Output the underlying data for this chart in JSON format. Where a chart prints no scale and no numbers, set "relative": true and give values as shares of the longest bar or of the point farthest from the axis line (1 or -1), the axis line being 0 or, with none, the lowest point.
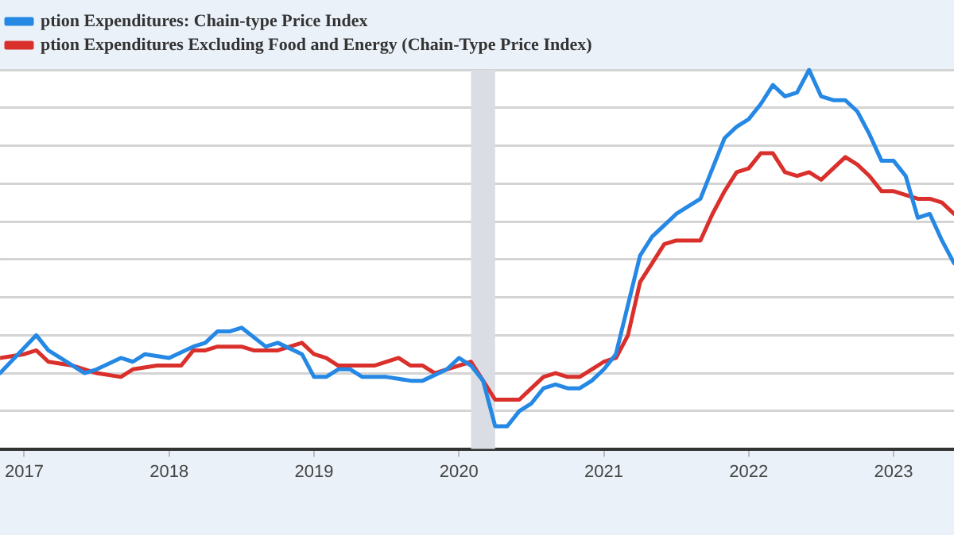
{
  "chart_data": {
    "type": "line",
    "relative": true,
    "grid": "y",
    "legend": "top left",
    "marker": "none",
    "line_style": "solid",
    "xlim": [
      "2016-11",
      "2023-06"
    ],
    "xticks": [
      {
        "value": "2017",
        "label": "2017"
      },
      {
        "value": "2018",
        "label": "2018"
      },
      {
        "value": "2019",
        "label": "2019"
      },
      {
        "value": "2020",
        "label": "2020"
      },
      {
        "value": "2021",
        "label": "2021"
      },
      {
        "value": "2022",
        "label": "2022"
      },
      {
        "value": "2023",
        "label": "2023"
      }
    ],
    "bands": [
      {
        "axis": "x",
        "from": "2020-02",
        "to": "2020-04",
        "color": "#dadee4"
      }
    ],
    "series": [
      {
        "name": "ption Expenditures: Chain-type Price Index",
        "color": "#2588e4",
        "x": [
          "2016-11",
          "2017-02",
          "2017-03",
          "2017-04",
          "2017-06",
          "2017-07",
          "2017-09",
          "2017-10",
          "2017-11",
          "2018-01",
          "2018-03",
          "2018-04",
          "2018-05",
          "2018-06",
          "2018-07",
          "2018-09",
          "2018-10",
          "2018-12",
          "2019-01",
          "2019-02",
          "2019-03",
          "2019-04",
          "2019-05",
          "2019-07",
          "2019-09",
          "2019-10",
          "2019-12",
          "2020-01",
          "2020-02",
          "2020-03",
          "2020-04",
          "2020-05",
          "2020-06",
          "2020-07",
          "2020-08",
          "2020-09",
          "2020-10",
          "2020-11",
          "2020-12",
          "2021-01",
          "2021-02",
          "2021-03",
          "2021-04",
          "2021-05",
          "2021-06",
          "2021-07",
          "2021-08",
          "2021-09",
          "2021-10",
          "2021-11",
          "2021-12",
          "2022-01",
          "2022-02",
          "2022-03",
          "2022-04",
          "2022-05",
          "2022-06",
          "2022-07",
          "2022-08",
          "2022-09",
          "2022-10",
          "2022-11",
          "2022-12",
          "2023-01",
          "2023-02",
          "2023-03",
          "2023-04",
          "2023-05",
          "2023-06"
        ],
        "values": [
          0.2,
          0.3,
          0.26,
          0.24,
          0.2,
          0.21,
          0.24,
          0.23,
          0.25,
          0.24,
          0.27,
          0.28,
          0.31,
          0.31,
          0.32,
          0.27,
          0.28,
          0.25,
          0.19,
          0.19,
          0.21,
          0.21,
          0.19,
          0.19,
          0.18,
          0.18,
          0.21,
          0.24,
          0.22,
          0.18,
          0.06,
          0.06,
          0.1,
          0.12,
          0.16,
          0.17,
          0.16,
          0.16,
          0.18,
          0.21,
          0.25,
          0.38,
          0.51,
          0.56,
          0.59,
          0.62,
          0.64,
          0.66,
          0.74,
          0.82,
          0.85,
          0.87,
          0.91,
          0.96,
          0.93,
          0.94,
          1,
          0.93,
          0.92,
          0.92,
          0.89,
          0.83,
          0.76,
          0.76,
          0.72,
          0.61,
          0.62,
          0.55,
          0.49
        ]
      },
      {
        "name": "ption Expenditures Excluding Food and Energy (Chain-Type Price Index)",
        "color": "#d9302c",
        "x": [
          "2016-11",
          "2017-01",
          "2017-02",
          "2017-03",
          "2017-05",
          "2017-06",
          "2017-07",
          "2017-09",
          "2017-10",
          "2017-12",
          "2018-02",
          "2018-03",
          "2018-04",
          "2018-05",
          "2018-06",
          "2018-07",
          "2018-08",
          "2018-10",
          "2018-11",
          "2018-12",
          "2019-01",
          "2019-02",
          "2019-03",
          "2019-05",
          "2019-06",
          "2019-08",
          "2019-09",
          "2019-10",
          "2019-11",
          "2019-12",
          "2020-02",
          "2020-03",
          "2020-04",
          "2020-05",
          "2020-06",
          "2020-07",
          "2020-08",
          "2020-09",
          "2020-10",
          "2020-11",
          "2020-12",
          "2021-01",
          "2021-02",
          "2021-03",
          "2021-04",
          "2021-05",
          "2021-06",
          "2021-07",
          "2021-08",
          "2021-09",
          "2021-10",
          "2021-11",
          "2021-12",
          "2022-01",
          "2022-02",
          "2022-03",
          "2022-04",
          "2022-05",
          "2022-06",
          "2022-07",
          "2022-08",
          "2022-09",
          "2022-10",
          "2022-11",
          "2022-12",
          "2023-01",
          "2023-02",
          "2023-03",
          "2023-04",
          "2023-05",
          "2023-06"
        ],
        "values": [
          0.24,
          0.25,
          0.26,
          0.23,
          0.22,
          0.21,
          0.2,
          0.19,
          0.21,
          0.22,
          0.22,
          0.26,
          0.26,
          0.27,
          0.27,
          0.27,
          0.26,
          0.26,
          0.27,
          0.28,
          0.25,
          0.24,
          0.22,
          0.22,
          0.22,
          0.24,
          0.22,
          0.22,
          0.2,
          0.21,
          0.23,
          0.18,
          0.13,
          0.13,
          0.13,
          0.16,
          0.19,
          0.2,
          0.19,
          0.19,
          0.21,
          0.23,
          0.24,
          0.3,
          0.44,
          0.49,
          0.54,
          0.55,
          0.55,
          0.55,
          0.62,
          0.68,
          0.73,
          0.74,
          0.78,
          0.78,
          0.73,
          0.72,
          0.73,
          0.71,
          0.74,
          0.77,
          0.75,
          0.72,
          0.68,
          0.68,
          0.67,
          0.66,
          0.66,
          0.65,
          0.62
        ]
      }
    ]
  }
}
